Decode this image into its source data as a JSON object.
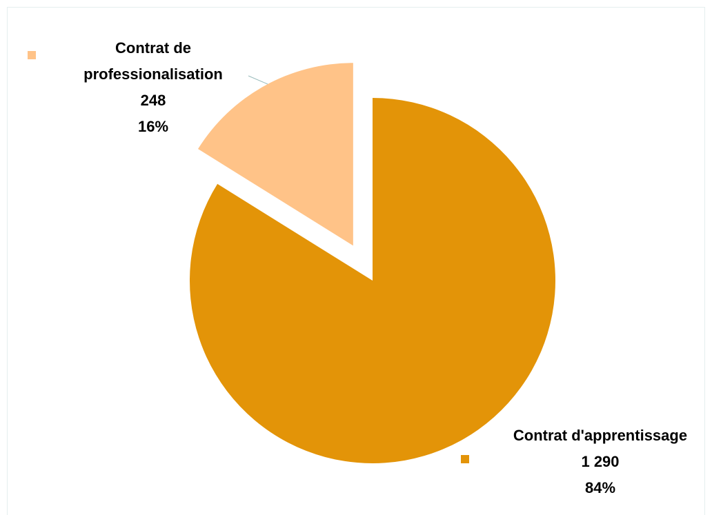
{
  "chart_data": {
    "type": "pie",
    "categories": [
      "Contrat d'apprentissage",
      "Contrat de professionalisation"
    ],
    "values": [
      1290,
      248
    ],
    "value_labels": [
      "1 290",
      "248"
    ],
    "percent_labels": [
      "84%",
      "16%"
    ],
    "colors": [
      "#E39408",
      "#FFC388"
    ],
    "exploded": [
      false,
      true
    ]
  }
}
